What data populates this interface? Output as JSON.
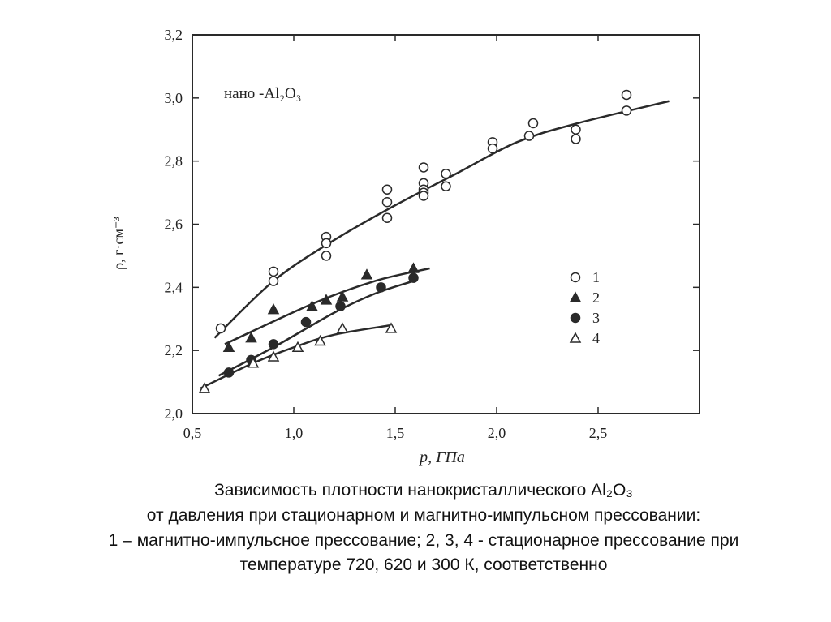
{
  "chart_data": {
    "type": "scatter",
    "annotation": "нано -Al₂O₃",
    "x_label": "p, ГПа",
    "y_label": "ρ, г·см⁻³",
    "xlim": [
      0.5,
      3.0
    ],
    "ylim": [
      2.0,
      3.2
    ],
    "xticks": [
      {
        "value": 0.5,
        "label": "0,5"
      },
      {
        "value": 1.0,
        "label": "1,0"
      },
      {
        "value": 1.5,
        "label": "1,5"
      },
      {
        "value": 2.0,
        "label": "2,0"
      },
      {
        "value": 2.5,
        "label": "2,5"
      }
    ],
    "yticks": [
      {
        "value": 2.0,
        "label": "2,0"
      },
      {
        "value": 2.2,
        "label": "2,2"
      },
      {
        "value": 2.4,
        "label": "2,4"
      },
      {
        "value": 2.6,
        "label": "2,6"
      },
      {
        "value": 2.8,
        "label": "2,8"
      },
      {
        "value": 3.0,
        "label": "3,0"
      },
      {
        "value": 3.2,
        "label": "3,2"
      }
    ],
    "series": [
      {
        "name": "1",
        "marker": "open-circle",
        "color": "#2a2a2a",
        "x": [
          0.64,
          0.9,
          0.9,
          1.16,
          1.16,
          1.16,
          1.46,
          1.46,
          1.46,
          1.64,
          1.64,
          1.64,
          1.64,
          1.64,
          1.75,
          1.75,
          1.98,
          1.98,
          2.18,
          2.16,
          2.39,
          2.39,
          2.64,
          2.64
        ],
        "values": [
          2.27,
          2.45,
          2.42,
          2.56,
          2.54,
          2.5,
          2.71,
          2.67,
          2.62,
          2.78,
          2.73,
          2.71,
          2.7,
          2.69,
          2.76,
          2.72,
          2.86,
          2.84,
          2.92,
          2.88,
          2.9,
          2.87,
          3.01,
          2.96
        ],
        "curve": {
          "x": [
            0.61,
            0.9,
            1.2,
            1.5,
            1.8,
            2.1,
            2.4,
            2.85
          ],
          "y": [
            2.24,
            2.42,
            2.55,
            2.66,
            2.76,
            2.86,
            2.92,
            2.99
          ]
        }
      },
      {
        "name": "2",
        "marker": "filled-triangle",
        "color": "#2a2a2a",
        "x": [
          0.68,
          0.79,
          0.9,
          1.09,
          1.16,
          1.24,
          1.36,
          1.59
        ],
        "values": [
          2.21,
          2.24,
          2.33,
          2.34,
          2.36,
          2.37,
          2.44,
          2.46
        ],
        "curve": {
          "x": [
            0.66,
            1.1,
            1.4,
            1.67
          ],
          "y": [
            2.22,
            2.35,
            2.42,
            2.46
          ]
        }
      },
      {
        "name": "3",
        "marker": "filled-circle",
        "color": "#2a2a2a",
        "x": [
          0.68,
          0.79,
          0.9,
          1.06,
          1.23,
          1.43,
          1.59
        ],
        "values": [
          2.13,
          2.17,
          2.22,
          2.29,
          2.34,
          2.4,
          2.43
        ],
        "curve": {
          "x": [
            0.63,
            0.9,
            1.2,
            1.4,
            1.59
          ],
          "y": [
            2.12,
            2.21,
            2.32,
            2.38,
            2.42
          ]
        }
      },
      {
        "name": "4",
        "marker": "open-triangle",
        "color": "#2a2a2a",
        "x": [
          0.56,
          0.8,
          0.9,
          1.02,
          1.13,
          1.24,
          1.48
        ],
        "values": [
          2.08,
          2.16,
          2.18,
          2.21,
          2.23,
          2.27,
          2.27
        ],
        "curve": {
          "x": [
            0.54,
            0.8,
            1.0,
            1.2,
            1.48
          ],
          "y": [
            2.08,
            2.16,
            2.21,
            2.25,
            2.28
          ]
        }
      }
    ],
    "caption": [
      "Зависимость плотности нанокристаллического Al₂O₃",
      "от давления при стационарном и магнитно-импульсном прессовании:",
      "1 – магнитно-импульсное прессование; 2, 3, 4 -  стационарное прессование при",
      "температуре 720, 620 и 300 К, соответственно"
    ]
  }
}
